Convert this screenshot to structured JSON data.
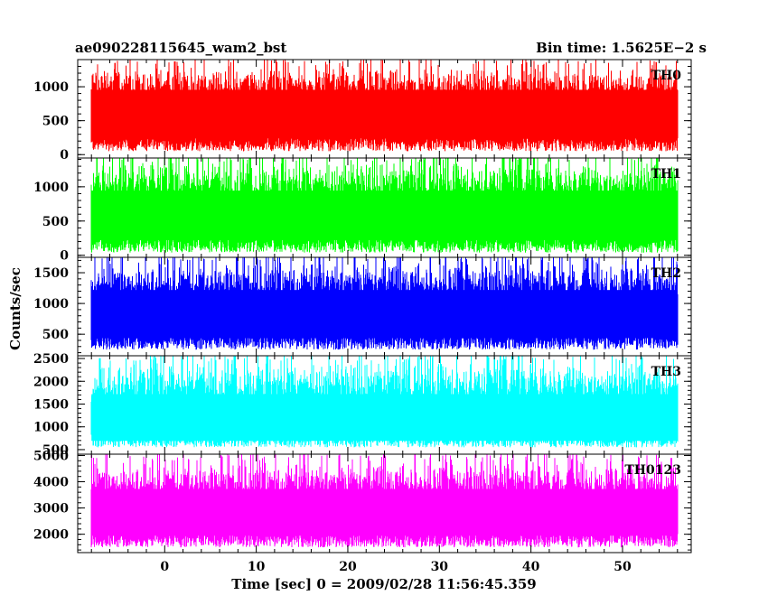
{
  "header": {
    "left_title": "ae090228115645_wam2_bst",
    "right_title": "Bin time: 1.5625E−2 s"
  },
  "chart_data": {
    "type": "line",
    "xlabel": "Time [sec] 0 = 2009/02/28 11:56:45.359",
    "ylabel": "Counts/sec",
    "xlim": [
      -9.5,
      57.5
    ],
    "xticks": [
      0,
      10,
      20,
      30,
      40,
      50
    ],
    "x_data_range": [
      -8,
      56
    ],
    "panels": [
      {
        "name": "TH0",
        "color": "#ff0000",
        "ylim": [
          -50,
          1400
        ],
        "yticks": [
          0,
          500,
          1000
        ],
        "typical_low": 50,
        "typical_high": 1300,
        "mean": 680
      },
      {
        "name": "TH1",
        "color": "#00ff00",
        "ylim": [
          -30,
          1420
        ],
        "yticks": [
          0,
          500,
          1000
        ],
        "typical_low": 40,
        "typical_high": 1380,
        "mean": 650
      },
      {
        "name": "TH2",
        "color": "#0000ff",
        "ylim": [
          150,
          1750
        ],
        "yticks": [
          500,
          1000,
          1500
        ],
        "typical_low": 250,
        "typical_high": 1700,
        "mean": 900
      },
      {
        "name": "TH3",
        "color": "#00ffff",
        "ylim": [
          400,
          2560
        ],
        "yticks": [
          500,
          1000,
          1500,
          2000,
          2500
        ],
        "typical_low": 550,
        "typical_high": 2450,
        "mean": 1300
      },
      {
        "name": "TH0123",
        "color": "#ff00ff",
        "ylim": [
          1300,
          5050
        ],
        "yticks": [
          2000,
          3000,
          4000,
          5000
        ],
        "typical_low": 1500,
        "typical_high": 4800,
        "mean": 3000
      }
    ]
  }
}
